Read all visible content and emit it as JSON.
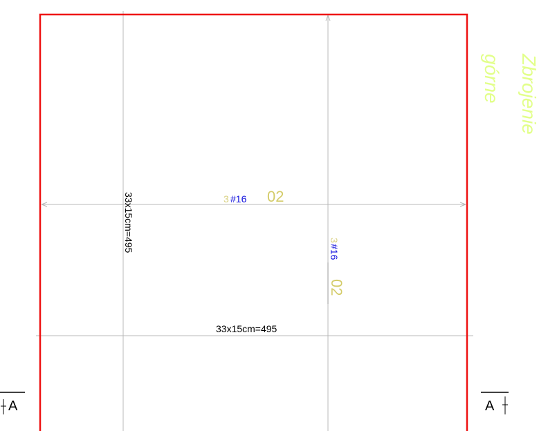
{
  "layer_title": [
    "Zbrojenie",
    "górne"
  ],
  "horizontal_bar": {
    "count": "3",
    "mark": "#16",
    "position": "02"
  },
  "vertical_bar": {
    "count": "3",
    "mark": "#16",
    "position": "02"
  },
  "dimensions": {
    "vertical": "33x15cm=495",
    "horizontal": "33x15cm=495"
  },
  "section": {
    "left": "A",
    "right": "A"
  }
}
